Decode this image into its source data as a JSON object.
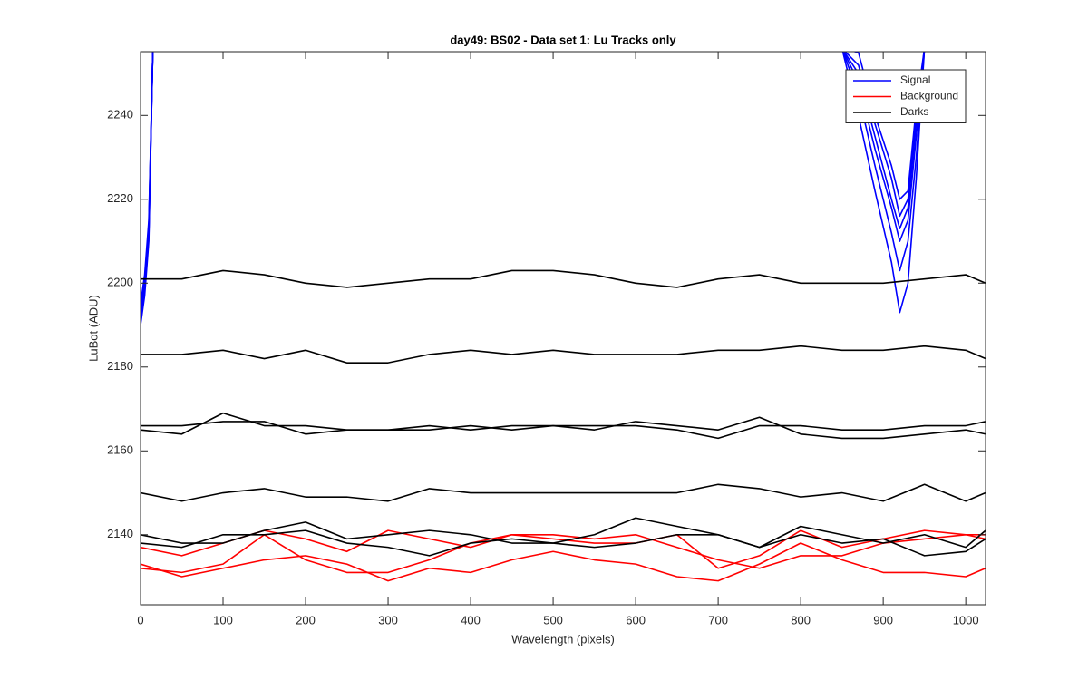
{
  "chart_data": {
    "type": "line",
    "title": "day49: BS02 - Data set 1: Lu Tracks only",
    "xlabel": "Wavelength (pixels)",
    "ylabel": "LuBot (ADU)",
    "xlim": [
      0,
      1024
    ],
    "ylim": [
      2123.3,
      2255.2
    ],
    "xticks": [
      0,
      100,
      200,
      300,
      400,
      500,
      600,
      700,
      800,
      900,
      1000
    ],
    "yticks": [
      2140,
      2160,
      2180,
      2200,
      2220,
      2240
    ],
    "legend": "upper right",
    "series": [
      {
        "name": "Signal",
        "color": "#0000ff",
        "x": [
          0,
          5,
          10,
          15,
          500,
          850,
          870,
          890,
          910,
          920,
          930,
          940,
          950
        ],
        "lines": [
          [
            2190,
            2197,
            2210,
            2256,
            null,
            2256,
            2240,
            2222,
            2205,
            2193,
            2200,
            2225,
            2256
          ],
          [
            2191,
            2198,
            2211,
            2256,
            null,
            2256,
            2245,
            2228,
            2212,
            2203,
            2210,
            2230,
            2256
          ],
          [
            2192,
            2199,
            2212,
            2256,
            null,
            2256,
            2248,
            2232,
            2218,
            2210,
            2215,
            2235,
            2256
          ],
          [
            2193,
            2200,
            2213,
            2256,
            null,
            2256,
            2250,
            2235,
            2220,
            2213,
            2218,
            2238,
            2256
          ],
          [
            2194,
            2201,
            2214,
            2256,
            null,
            2256,
            2252,
            2238,
            2225,
            2216,
            2220,
            2240,
            2256
          ],
          [
            2195,
            2202,
            2215,
            2256,
            null,
            2256,
            2255,
            2240,
            2228,
            2220,
            2222,
            2242,
            2256
          ]
        ]
      },
      {
        "name": "Background",
        "color": "#ff0000",
        "x": [
          0,
          50,
          100,
          150,
          200,
          250,
          300,
          350,
          400,
          450,
          500,
          550,
          600,
          650,
          700,
          750,
          800,
          850,
          900,
          950,
          1000,
          1024
        ],
        "lines": [
          [
            2137,
            2135,
            2138,
            2141,
            2139,
            2136,
            2141,
            2139,
            2137,
            2140,
            2139,
            2138,
            2138,
            2140,
            2132,
            2135,
            2141,
            2137,
            2139,
            2141,
            2140,
            2140
          ],
          [
            2132,
            2131,
            2133,
            2140,
            2134,
            2131,
            2131,
            2134,
            2138,
            2140,
            2140,
            2139,
            2140,
            2137,
            2134,
            2132,
            2135,
            2135,
            2138,
            2139,
            2140,
            2139
          ],
          [
            2133,
            2130,
            2132,
            2134,
            2135,
            2133,
            2129,
            2132,
            2131,
            2134,
            2136,
            2134,
            2133,
            2130,
            2129,
            2133,
            2138,
            2134,
            2131,
            2131,
            2130,
            2132
          ]
        ]
      },
      {
        "name": "Darks",
        "color": "#000000",
        "x": [
          0,
          50,
          100,
          150,
          200,
          250,
          300,
          350,
          400,
          450,
          500,
          550,
          600,
          650,
          700,
          750,
          800,
          850,
          900,
          950,
          1000,
          1024
        ],
        "lines": [
          [
            2201,
            2201,
            2203,
            2202,
            2200,
            2199,
            2200,
            2201,
            2201,
            2203,
            2203,
            2202,
            2200,
            2199,
            2201,
            2202,
            2200,
            2200,
            2200,
            2201,
            2202,
            2200
          ],
          [
            2183,
            2183,
            2184,
            2182,
            2184,
            2181,
            2181,
            2183,
            2184,
            2183,
            2184,
            2183,
            2183,
            2183,
            2184,
            2184,
            2185,
            2184,
            2184,
            2185,
            2184,
            2182
          ],
          [
            2166,
            2166,
            2167,
            2167,
            2164,
            2165,
            2165,
            2165,
            2166,
            2165,
            2166,
            2166,
            2166,
            2165,
            2163,
            2166,
            2166,
            2165,
            2165,
            2166,
            2166,
            2167
          ],
          [
            2165,
            2164,
            2169,
            2166,
            2166,
            2165,
            2165,
            2166,
            2165,
            2166,
            2166,
            2165,
            2167,
            2166,
            2165,
            2168,
            2164,
            2163,
            2163,
            2164,
            2165,
            2164
          ],
          [
            2150,
            2148,
            2150,
            2151,
            2149,
            2149,
            2148,
            2151,
            2150,
            2150,
            2150,
            2150,
            2150,
            2150,
            2152,
            2151,
            2149,
            2150,
            2148,
            2152,
            2148,
            2150
          ],
          [
            2140,
            2138,
            2138,
            2141,
            2143,
            2139,
            2140,
            2141,
            2140,
            2138,
            2138,
            2140,
            2144,
            2142,
            2140,
            2137,
            2142,
            2140,
            2138,
            2140,
            2137,
            2141
          ],
          [
            2138,
            2137,
            2140,
            2140,
            2141,
            2138,
            2137,
            2135,
            2138,
            2139,
            2138,
            2137,
            2138,
            2140,
            2140,
            2137,
            2140,
            2138,
            2139,
            2135,
            2136,
            2139
          ]
        ]
      }
    ]
  }
}
